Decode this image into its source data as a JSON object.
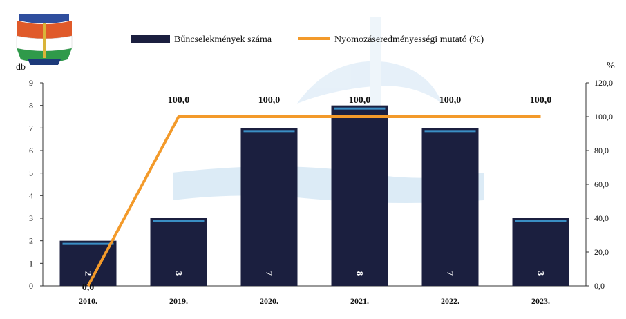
{
  "chart_data": {
    "type": "bar+line",
    "categories": [
      "2010.",
      "2019.",
      "2020.",
      "2021.",
      "2022.",
      "2023."
    ],
    "series": [
      {
        "name": "Bűncselekmények száma",
        "type": "bar",
        "axis": "left",
        "values": [
          2,
          3,
          7,
          8,
          7,
          3
        ],
        "labels": [
          "2",
          "3",
          "7",
          "8",
          "7",
          "3"
        ],
        "color": "#1b1f3f"
      },
      {
        "name": "Nyomozáseredményességi mutató (%)",
        "type": "line",
        "axis": "right",
        "values": [
          0,
          100,
          100,
          100,
          100,
          100
        ],
        "labels": [
          "0,0",
          "100,0",
          "100,0",
          "100,0",
          "100,0",
          "100,0"
        ],
        "color": "#f39a2a"
      }
    ],
    "y_left": {
      "label": "db",
      "ylim": [
        0,
        9
      ],
      "ticks": [
        "0",
        "1",
        "2",
        "3",
        "4",
        "5",
        "6",
        "7",
        "8",
        "9"
      ]
    },
    "y_right": {
      "label": "%",
      "ylim": [
        0,
        120
      ],
      "ticks": [
        "0,0",
        "20,0",
        "40,0",
        "60,0",
        "80,0",
        "100,0",
        "120,0"
      ]
    },
    "legend_position": "top",
    "grid": false,
    "colors": {
      "bar": "#1b1f3f",
      "bar_highlight": "#3a8ec4",
      "line": "#f39a2a",
      "axis": "#333333",
      "text": "#111111",
      "watermark": "#9cc7e6"
    },
    "logo": {
      "description_icon": "police-crest-logo",
      "text": ""
    }
  }
}
